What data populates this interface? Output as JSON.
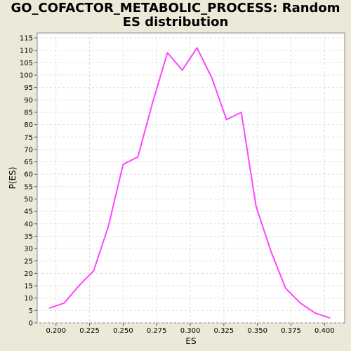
{
  "chart_data": {
    "type": "line",
    "title": "GO_COFACTOR_METABOLIC_PROCESS: Random ES distribution",
    "title_lines": [
      "GO_COFACTOR_METABOLIC_PROCESS: Random",
      "ES distribution"
    ],
    "xlabel": "ES",
    "ylabel": "P(ES)",
    "xlim": [
      0.186,
      0.415
    ],
    "ylim": [
      0,
      117
    ],
    "x_ticks": [
      "0.200",
      "0.225",
      "0.250",
      "0.275",
      "0.300",
      "0.325",
      "0.350",
      "0.375",
      "0.400"
    ],
    "y_ticks": [
      "0",
      "5",
      "10",
      "15",
      "20",
      "25",
      "30",
      "35",
      "40",
      "45",
      "50",
      "55",
      "60",
      "65",
      "70",
      "75",
      "80",
      "85",
      "90",
      "95",
      "100",
      "105",
      "110",
      "115"
    ],
    "grid": true,
    "series": [
      {
        "color": "#ff44ff",
        "x": [
          0.195,
          0.206,
          0.217,
          0.228,
          0.239,
          0.25,
          0.261,
          0.272,
          0.283,
          0.294,
          0.305,
          0.316,
          0.327,
          0.338,
          0.349,
          0.36,
          0.371,
          0.382,
          0.393,
          0.404
        ],
        "y": [
          6,
          8,
          15,
          21,
          39,
          64,
          67,
          89,
          109,
          102,
          111,
          99,
          82,
          85,
          47,
          29,
          14,
          8,
          4,
          2
        ]
      }
    ]
  },
  "colors": {
    "background": "#ece9d8",
    "plot_background": "#ffffff",
    "grid": "#dddddd",
    "line": "#ff44ff"
  }
}
